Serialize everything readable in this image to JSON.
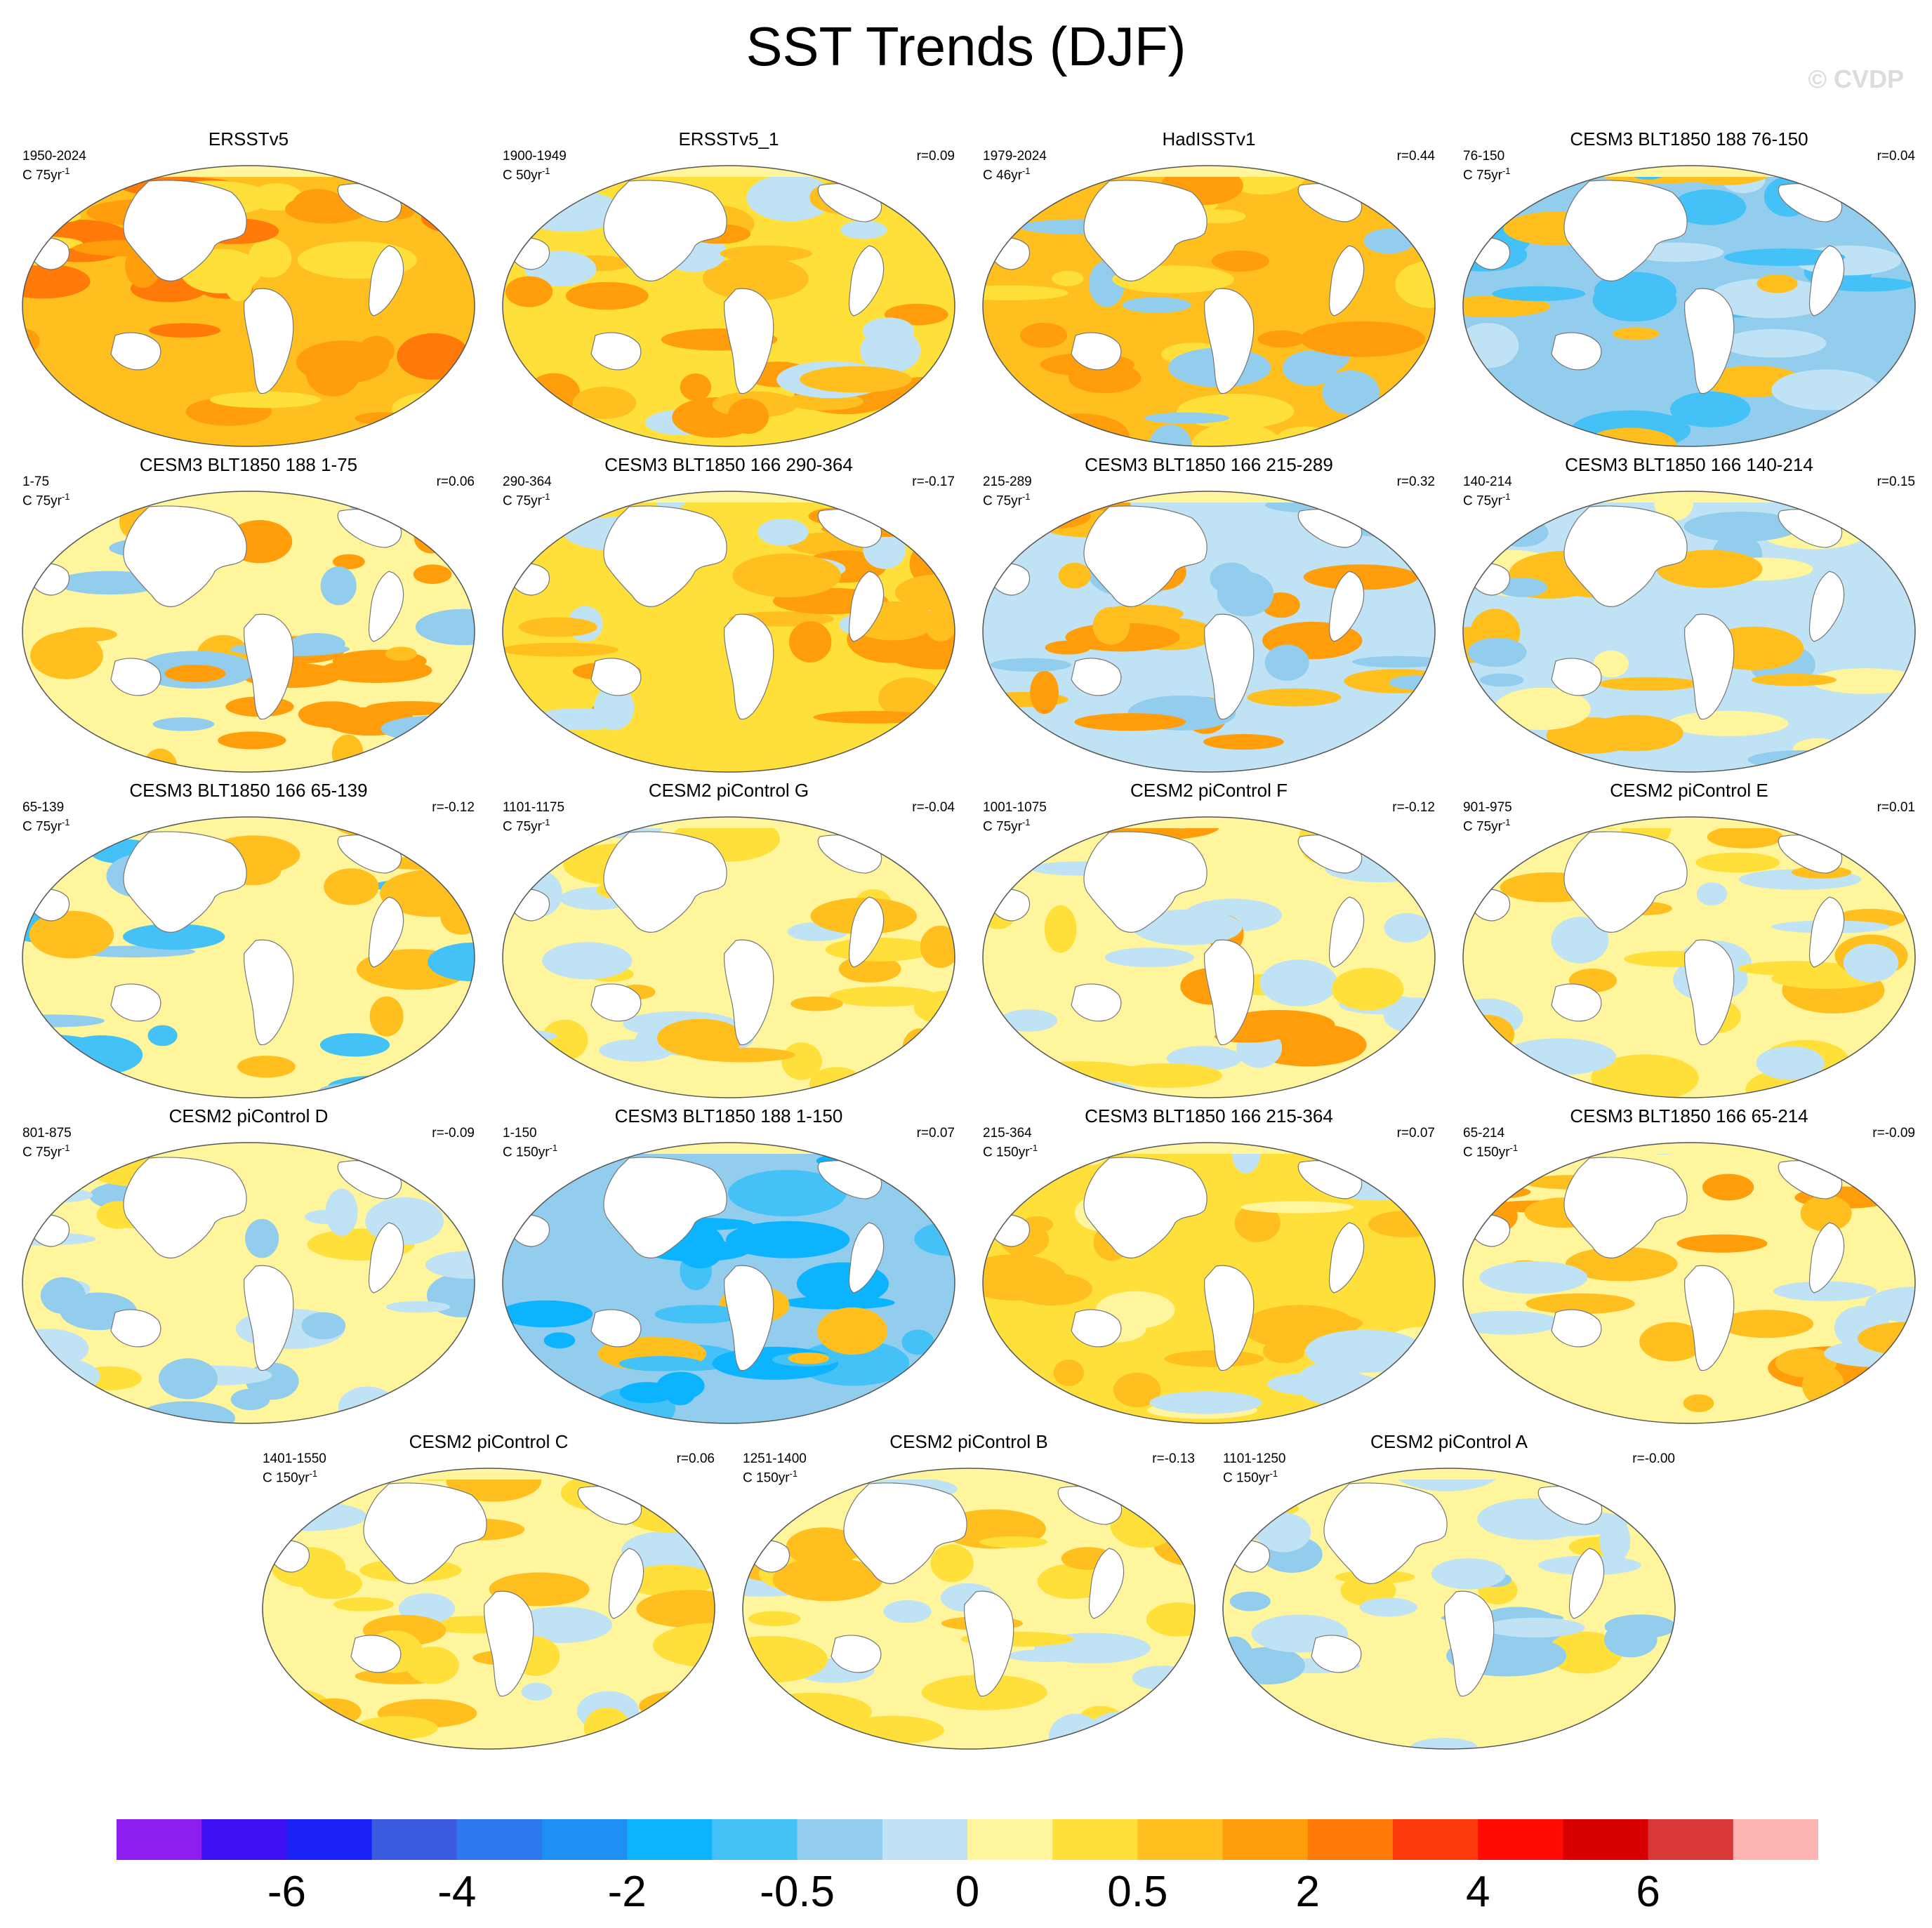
{
  "title": "SST Trends (DJF)",
  "credit": "© CVDP",
  "chart_data": {
    "type": "map",
    "variable": "SST trend",
    "season": "DJF",
    "panels": [
      {
        "title": "ERSSTv5",
        "period": "1950-2024",
        "units": "C 75yr",
        "units_exp": "-1",
        "r": ""
      },
      {
        "title": "ERSSTv5_1",
        "period": "1900-1949",
        "units": "C 50yr",
        "units_exp": "-1",
        "r": "r=0.09"
      },
      {
        "title": "HadISSTv1",
        "period": "1979-2024",
        "units": "C 46yr",
        "units_exp": "-1",
        "r": "r=0.44"
      },
      {
        "title": "CESM3 BLT1850 188 76-150",
        "period": "76-150",
        "units": "C 75yr",
        "units_exp": "-1",
        "r": "r=0.04"
      },
      {
        "title": "CESM3 BLT1850 188 1-75",
        "period": "1-75",
        "units": "C 75yr",
        "units_exp": "-1",
        "r": "r=0.06"
      },
      {
        "title": "CESM3 BLT1850 166 290-364",
        "period": "290-364",
        "units": "C 75yr",
        "units_exp": "-1",
        "r": "r=-0.17"
      },
      {
        "title": "CESM3 BLT1850 166 215-289",
        "period": "215-289",
        "units": "C 75yr",
        "units_exp": "-1",
        "r": "r=0.32"
      },
      {
        "title": "CESM3 BLT1850 166 140-214",
        "period": "140-214",
        "units": "C 75yr",
        "units_exp": "-1",
        "r": "r=0.15"
      },
      {
        "title": "CESM3 BLT1850 166 65-139",
        "period": "65-139",
        "units": "C 75yr",
        "units_exp": "-1",
        "r": "r=-0.12"
      },
      {
        "title": "CESM2 piControl G",
        "period": "1101-1175",
        "units": "C 75yr",
        "units_exp": "-1",
        "r": "r=-0.04"
      },
      {
        "title": "CESM2 piControl F",
        "period": "1001-1075",
        "units": "C 75yr",
        "units_exp": "-1",
        "r": "r=-0.12"
      },
      {
        "title": "CESM2 piControl E",
        "period": "901-975",
        "units": "C 75yr",
        "units_exp": "-1",
        "r": "r=0.01"
      },
      {
        "title": "CESM2 piControl D",
        "period": "801-875",
        "units": "C 75yr",
        "units_exp": "-1",
        "r": "r=-0.09"
      },
      {
        "title": "CESM3 BLT1850 188 1-150",
        "period": "1-150",
        "units": "C 150yr",
        "units_exp": "-1",
        "r": "r=0.07"
      },
      {
        "title": "CESM3 BLT1850 166 215-364",
        "period": "215-364",
        "units": "C 150yr",
        "units_exp": "-1",
        "r": "r=0.07"
      },
      {
        "title": "CESM3 BLT1850 166 65-214",
        "period": "65-214",
        "units": "C 150yr",
        "units_exp": "-1",
        "r": "r=-0.09"
      },
      {
        "title": "CESM2 piControl C",
        "period": "1401-1550",
        "units": "C 150yr",
        "units_exp": "-1",
        "r": "r=0.06"
      },
      {
        "title": "CESM2 piControl B",
        "period": "1251-1400",
        "units": "C 150yr",
        "units_exp": "-1",
        "r": "r=-0.13"
      },
      {
        "title": "CESM2 piControl A",
        "period": "1101-1250",
        "units": "C 150yr",
        "units_exp": "-1",
        "r": "r=-0.00"
      }
    ],
    "colorbar": {
      "colors": [
        "#8c1ff0",
        "#3c10f0",
        "#1a22f5",
        "#3a5ae0",
        "#2e78ee",
        "#1e90f5",
        "#0cb4ff",
        "#44c2f8",
        "#92cdee",
        "#bfe2f4",
        "#fff59d",
        "#ffe03a",
        "#ffbf1f",
        "#ff9d0a",
        "#ff7a08",
        "#ff3b0e",
        "#ff0a05",
        "#d80000",
        "#d93838",
        "#ffb4b4"
      ],
      "tick_labels": [
        "-6",
        "-4",
        "-2",
        "-0.5",
        "0",
        "0.5",
        "2",
        "4",
        "6"
      ],
      "tick_boundaries": [
        2,
        4,
        6,
        8,
        10,
        12,
        14,
        16,
        18
      ]
    }
  }
}
